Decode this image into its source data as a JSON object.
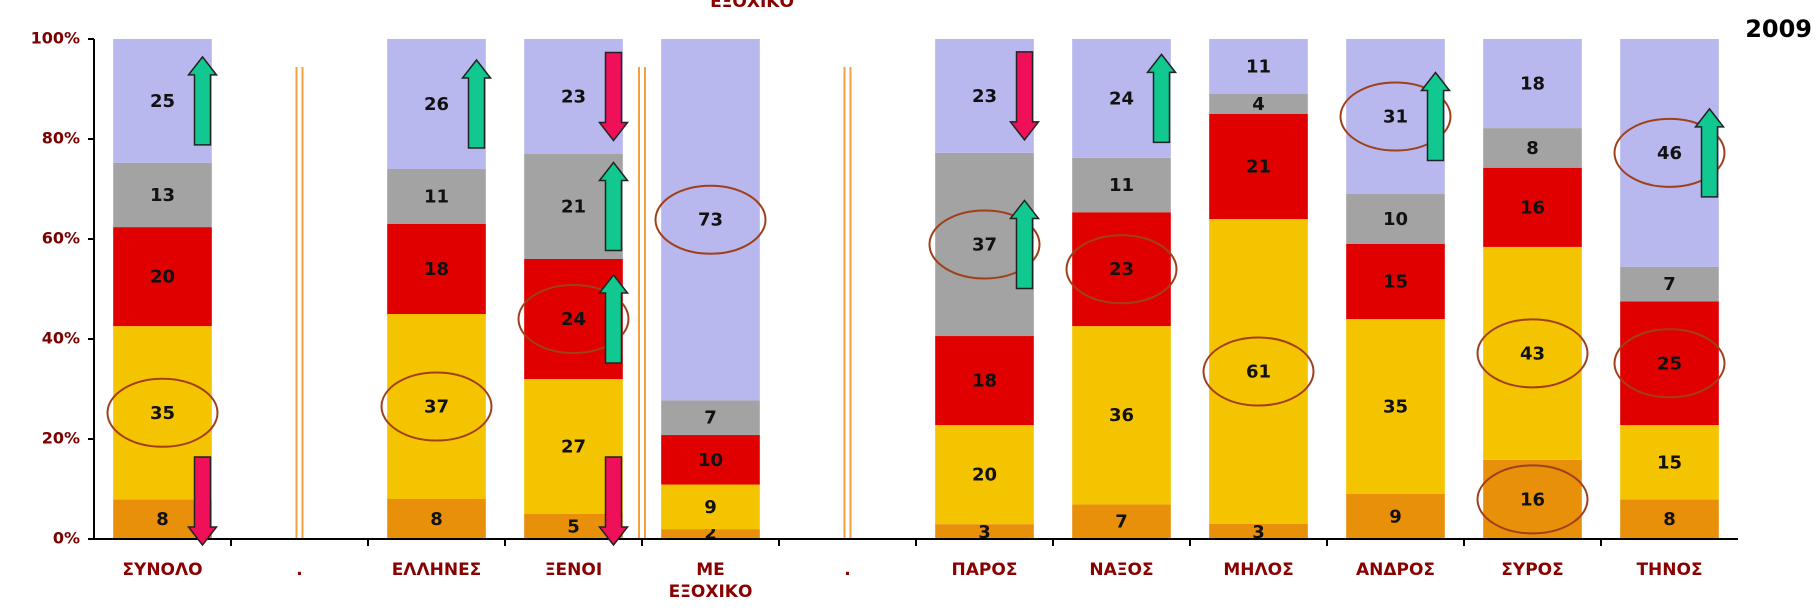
{
  "chart_data": {
    "type": "stacked_bar_percent",
    "top_text": "ΕΞΟΧΙΚΟ",
    "year": "2009",
    "categories": [
      "ΣΥΝΟΛΟ",
      ".",
      "ΕΛΛΗΝΕΣ",
      "ΞΕΝΟΙ",
      "ΜΕ ΕΞΟΧΙΚΟ",
      ".",
      "ΠΑΡΟΣ",
      "ΝΑΞΟΣ",
      "ΜΗΛΟΣ",
      "ΑΝΔΡΟΣ",
      "ΣΥΡΟΣ",
      "ΤΗΝΟΣ"
    ],
    "series": [
      {
        "color": "#e8900a",
        "values": [
          8,
          null,
          8,
          5,
          2,
          null,
          3,
          7,
          3,
          9,
          16,
          8
        ]
      },
      {
        "color": "#f5c400",
        "values": [
          35,
          null,
          37,
          27,
          9,
          null,
          20,
          36,
          61,
          35,
          43,
          15
        ]
      },
      {
        "color": "#e00000",
        "values": [
          20,
          null,
          18,
          24,
          10,
          null,
          18,
          23,
          21,
          15,
          16,
          25
        ]
      },
      {
        "color": "#a3a3a3",
        "values": [
          13,
          null,
          11,
          21,
          7,
          null,
          37,
          11,
          4,
          10,
          8,
          7
        ]
      },
      {
        "color": "#b8b8ee",
        "values": [
          25,
          null,
          26,
          23,
          73,
          null,
          23,
          24,
          11,
          31,
          18,
          46
        ]
      }
    ],
    "ylim": [
      0,
      100
    ],
    "yticks": [
      {
        "value": 0,
        "label": "0%"
      },
      {
        "value": 20,
        "label": "20%"
      },
      {
        "value": 40,
        "label": "40%"
      },
      {
        "value": 60,
        "label": "60%"
      },
      {
        "value": 80,
        "label": "80%"
      },
      {
        "value": 100,
        "label": "100%"
      }
    ]
  }
}
